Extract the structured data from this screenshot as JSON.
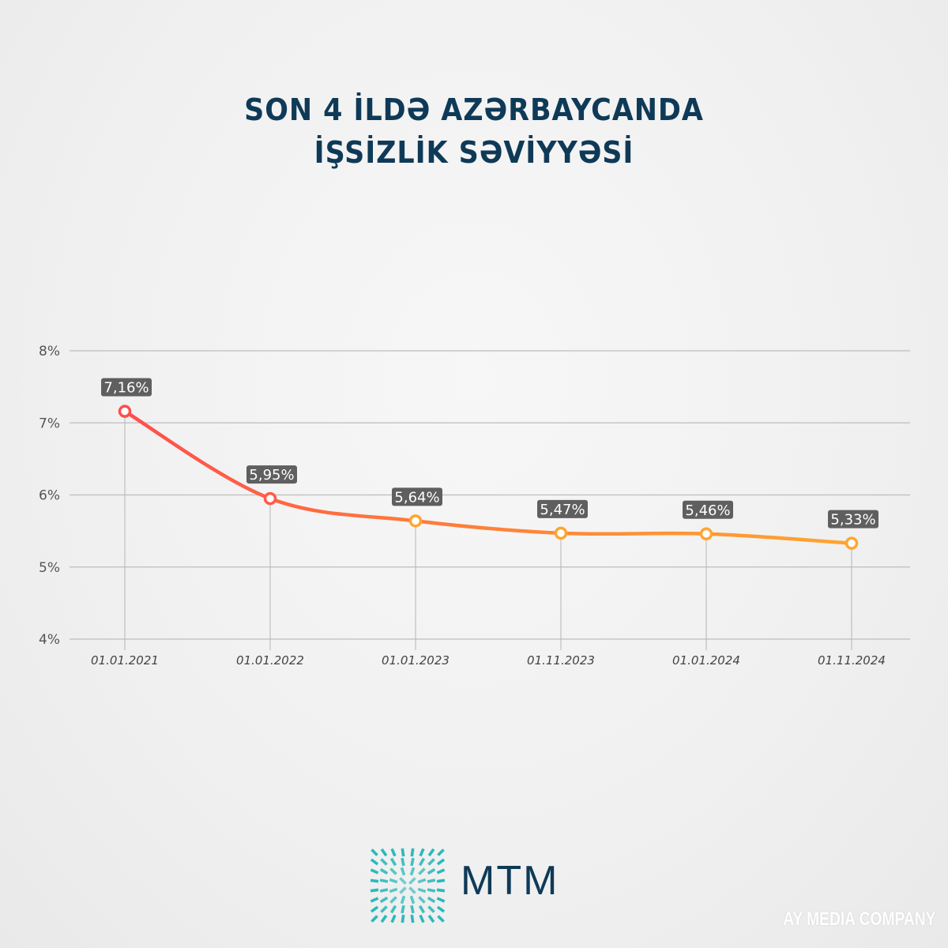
{
  "title": {
    "line1": "SON 4 İLDƏ AZƏRBAYCANDA",
    "line2": "İŞSİZLİK SƏVİYYƏSİ"
  },
  "chart_data": {
    "type": "line",
    "title": "SON 4 İLDƏ AZƏRBAYCANDA İŞSİZLİK SƏVİYYƏSİ",
    "categories": [
      "01.01.2021",
      "01.01.2022",
      "01.01.2023",
      "01.11.2023",
      "01.01.2024",
      "01.11.2024"
    ],
    "values": [
      7.16,
      5.95,
      5.64,
      5.47,
      5.46,
      5.33
    ],
    "data_labels": [
      "7,16%",
      "5,95%",
      "5,64%",
      "5,47%",
      "5,46%",
      "5,33%"
    ],
    "ylim": [
      4,
      8
    ],
    "yticks": [
      4,
      5,
      6,
      7,
      8
    ],
    "ytick_labels": [
      "4%",
      "5%",
      "6%",
      "7%",
      "8%"
    ],
    "xlabel": "",
    "ylabel": "",
    "grid": true,
    "colors": {
      "start": "#ff4d4d",
      "end": "#ffa530",
      "label_bg": "#5f5f5f",
      "grid": "#bdbdbd"
    }
  },
  "footer": {
    "brand": "MTM",
    "watermark": "AY MEDIA COMPANY"
  }
}
